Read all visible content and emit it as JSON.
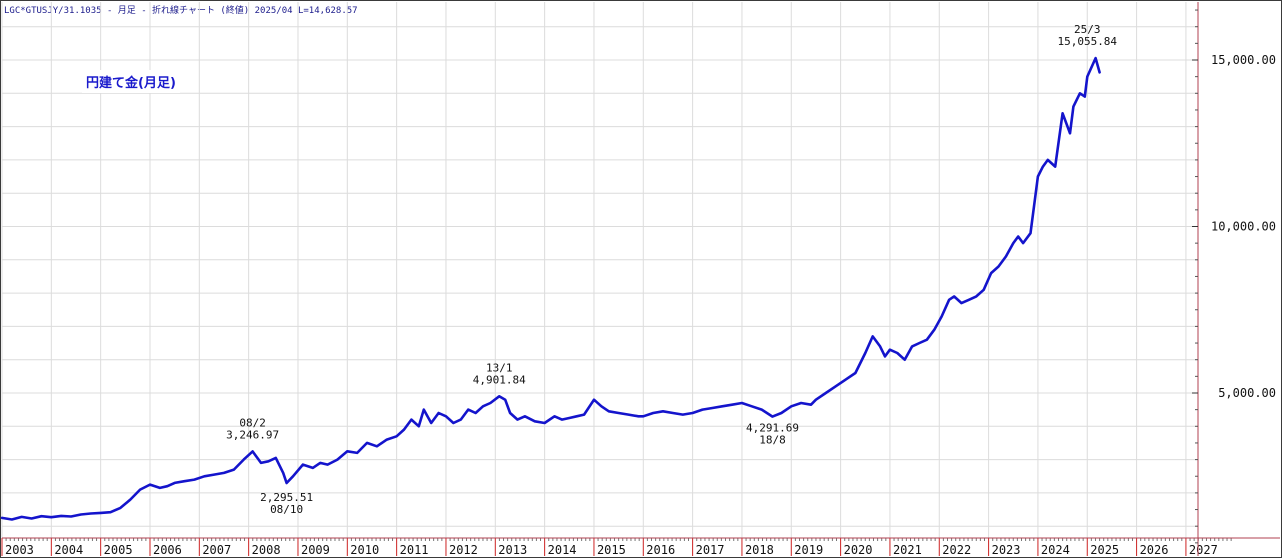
{
  "header": {
    "info": "LGC*GTUSJY/31.1035 - 月足 - 折れ線チャート (終値) 2025/04 L=14,628.57"
  },
  "chart_title": "円建て金(月足)",
  "colors": {
    "line": "#1414cc",
    "grid": "#dcdcdc",
    "year_tick": "#cc2222",
    "axis": "#b04050"
  },
  "chart_data": {
    "type": "line",
    "title": "円建て金(月足)",
    "xlim": [
      2003,
      2028
    ],
    "ylim": [
      0,
      16700
    ],
    "grid": true,
    "x_ticks": [
      "2003",
      "2004",
      "2005",
      "2006",
      "2007",
      "2008",
      "2009",
      "2010",
      "2011",
      "2012",
      "2013",
      "2014",
      "2015",
      "2016",
      "2017",
      "2018",
      "2019",
      "2020",
      "2021",
      "2022",
      "2023",
      "2024",
      "2025",
      "2026",
      "2027"
    ],
    "y_ticks": [
      {
        "value": 5000,
        "label": "5,000.00"
      },
      {
        "value": 10000,
        "label": "10,000.00"
      },
      {
        "value": 15000,
        "label": "15,000.00"
      }
    ],
    "series": [
      {
        "x": [
          2003.0,
          2003.2,
          2003.4,
          2003.6,
          2003.8,
          2004.0,
          2004.2,
          2004.4,
          2004.6,
          2004.8,
          2005.0,
          2005.2,
          2005.4,
          2005.6,
          2005.8,
          2006.0,
          2006.2,
          2006.35,
          2006.5,
          2006.7,
          2006.9,
          2007.1,
          2007.3,
          2007.5,
          2007.7,
          2007.9,
          2008.08,
          2008.25,
          2008.4,
          2008.55,
          2008.7,
          2008.77,
          2008.9,
          2009.1,
          2009.3,
          2009.45,
          2009.6,
          2009.8,
          2010.0,
          2010.2,
          2010.4,
          2010.6,
          2010.8,
          2011.0,
          2011.15,
          2011.3,
          2011.45,
          2011.55,
          2011.7,
          2011.85,
          2012.0,
          2012.15,
          2012.3,
          2012.45,
          2012.6,
          2012.75,
          2012.9,
          2013.08,
          2013.2,
          2013.3,
          2013.45,
          2013.6,
          2013.8,
          2014.0,
          2014.2,
          2014.35,
          2014.5,
          2014.65,
          2014.8,
          2015.0,
          2015.15,
          2015.3,
          2015.5,
          2015.7,
          2015.9,
          2016.0,
          2016.2,
          2016.4,
          2016.6,
          2016.8,
          2017.0,
          2017.2,
          2017.4,
          2017.6,
          2017.8,
          2018.0,
          2018.2,
          2018.4,
          2018.62,
          2018.8,
          2019.0,
          2019.2,
          2019.4,
          2019.5,
          2019.7,
          2019.9,
          2020.1,
          2020.3,
          2020.5,
          2020.65,
          2020.8,
          2020.9,
          2021.0,
          2021.15,
          2021.3,
          2021.45,
          2021.6,
          2021.75,
          2021.9,
          2022.05,
          2022.2,
          2022.3,
          2022.45,
          2022.6,
          2022.75,
          2022.9,
          2023.05,
          2023.2,
          2023.35,
          2023.5,
          2023.6,
          2023.7,
          2023.85,
          2024.0,
          2024.1,
          2024.2,
          2024.35,
          2024.5,
          2024.65,
          2024.72,
          2024.85,
          2024.95,
          2025.0,
          2025.17,
          2025.25
        ],
        "values": [
          1250,
          1200,
          1280,
          1230,
          1300,
          1270,
          1310,
          1290,
          1350,
          1380,
          1400,
          1420,
          1550,
          1800,
          2100,
          2250,
          2150,
          2200,
          2300,
          2350,
          2400,
          2500,
          2550,
          2600,
          2700,
          3000,
          3247,
          2900,
          2950,
          3050,
          2600,
          2296,
          2500,
          2850,
          2750,
          2900,
          2850,
          3000,
          3250,
          3200,
          3500,
          3400,
          3600,
          3700,
          3900,
          4200,
          4000,
          4500,
          4100,
          4400,
          4300,
          4100,
          4200,
          4500,
          4400,
          4600,
          4700,
          4902,
          4800,
          4400,
          4200,
          4300,
          4150,
          4100,
          4300,
          4200,
          4250,
          4300,
          4350,
          4800,
          4600,
          4450,
          4400,
          4350,
          4300,
          4300,
          4400,
          4450,
          4400,
          4350,
          4400,
          4500,
          4550,
          4600,
          4650,
          4700,
          4600,
          4500,
          4292,
          4400,
          4600,
          4700,
          4650,
          4800,
          5000,
          5200,
          5400,
          5600,
          6200,
          6700,
          6400,
          6100,
          6300,
          6200,
          6000,
          6400,
          6500,
          6600,
          6900,
          7300,
          7800,
          7900,
          7700,
          7800,
          7900,
          8100,
          8600,
          8800,
          9100,
          9500,
          9700,
          9500,
          9800,
          11500,
          11800,
          12000,
          11800,
          13400,
          12800,
          13600,
          14000,
          13900,
          14500,
          15056,
          14629
        ]
      }
    ],
    "annotations": [
      {
        "date": "08/2",
        "value": "3,246.97",
        "x": 2008.08,
        "y": 3247,
        "position": "above"
      },
      {
        "date": "08/10",
        "value": "2,295.51",
        "x": 2008.77,
        "y": 2296,
        "position": "below"
      },
      {
        "date": "13/1",
        "value": "4,901.84",
        "x": 2013.08,
        "y": 4902,
        "position": "above"
      },
      {
        "date": "18/8",
        "value": "4,291.69",
        "x": 2018.62,
        "y": 4292,
        "position": "below"
      },
      {
        "date": "25/3",
        "value": "15,055.84",
        "x": 2025.0,
        "y": 15056,
        "position": "above"
      }
    ]
  }
}
